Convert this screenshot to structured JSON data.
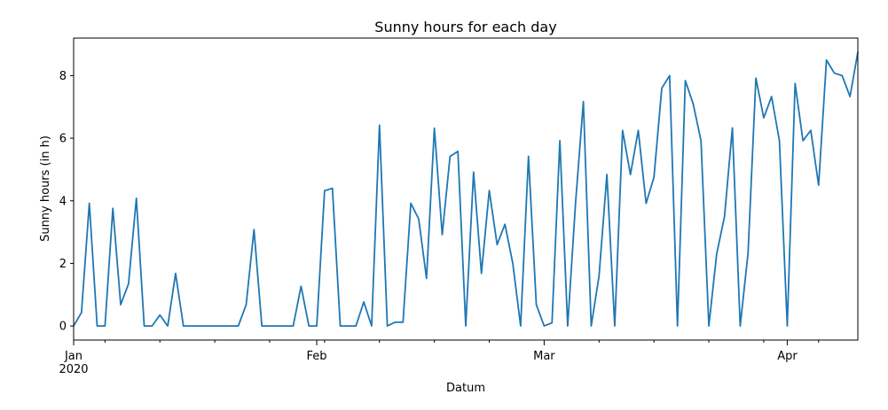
{
  "chart_data": {
    "type": "line",
    "title": "Sunny hours for each day",
    "xlabel": "Datum",
    "ylabel": "Sunny hours (in h)",
    "year_label": "2020",
    "x_start": "2020-01-01",
    "x_end": "2020-04-10",
    "ylim": [
      -0.45,
      9.2
    ],
    "yticks": [
      0,
      2,
      4,
      6,
      8
    ],
    "xticks": [
      {
        "date": "2020-01-01",
        "label": "Jan"
      },
      {
        "date": "2020-02-01",
        "label": "Feb"
      },
      {
        "date": "2020-03-01",
        "label": "Mar"
      },
      {
        "date": "2020-04-01",
        "label": "Apr"
      }
    ],
    "minor_tick_dates": [
      "2020-01-05",
      "2020-01-12",
      "2020-01-19",
      "2020-01-26",
      "2020-02-02",
      "2020-02-09",
      "2020-02-16",
      "2020-02-23",
      "2020-03-08",
      "2020-03-15",
      "2020-03-22",
      "2020-03-29",
      "2020-04-05"
    ],
    "grid": false,
    "line_color": "#1f77b4",
    "series": [
      {
        "x": [
          "2020-01-01",
          "2020-01-02",
          "2020-01-03",
          "2020-01-04",
          "2020-01-05",
          "2020-01-06",
          "2020-01-07",
          "2020-01-08",
          "2020-01-09",
          "2020-01-10",
          "2020-01-11",
          "2020-01-12",
          "2020-01-13",
          "2020-01-14",
          "2020-01-15",
          "2020-01-16",
          "2020-01-17",
          "2020-01-18",
          "2020-01-19",
          "2020-01-20",
          "2020-01-21",
          "2020-01-22",
          "2020-01-23",
          "2020-01-24",
          "2020-01-25",
          "2020-01-26",
          "2020-01-27",
          "2020-01-28",
          "2020-01-29",
          "2020-01-30",
          "2020-01-31",
          "2020-02-01",
          "2020-02-02",
          "2020-02-03",
          "2020-02-04",
          "2020-02-05",
          "2020-02-06",
          "2020-02-07",
          "2020-02-08",
          "2020-02-09",
          "2020-02-10",
          "2020-02-11",
          "2020-02-12",
          "2020-02-13",
          "2020-02-14",
          "2020-02-15",
          "2020-02-16",
          "2020-02-17",
          "2020-02-18",
          "2020-02-19",
          "2020-02-20",
          "2020-02-21",
          "2020-02-22",
          "2020-02-23",
          "2020-02-24",
          "2020-02-25",
          "2020-02-26",
          "2020-02-27",
          "2020-02-28",
          "2020-02-29",
          "2020-03-01",
          "2020-03-02",
          "2020-03-03",
          "2020-03-04",
          "2020-03-05",
          "2020-03-06",
          "2020-03-07",
          "2020-03-08",
          "2020-03-09",
          "2020-03-10",
          "2020-03-11",
          "2020-03-12",
          "2020-03-13",
          "2020-03-14",
          "2020-03-15",
          "2020-03-16",
          "2020-03-17",
          "2020-03-18",
          "2020-03-19",
          "2020-03-20",
          "2020-03-21",
          "2020-03-22",
          "2020-03-23",
          "2020-03-24",
          "2020-03-25",
          "2020-03-26",
          "2020-03-27",
          "2020-03-28",
          "2020-03-29",
          "2020-03-30",
          "2020-03-31",
          "2020-04-01",
          "2020-04-02",
          "2020-04-03",
          "2020-04-04",
          "2020-04-05",
          "2020-04-06",
          "2020-04-07",
          "2020-04-08",
          "2020-04-09",
          "2020-04-10"
        ],
        "values": [
          0,
          0.43,
          3.92,
          0,
          0,
          3.76,
          0.68,
          1.35,
          4.08,
          0,
          0,
          0.35,
          0,
          1.68,
          0,
          0,
          0,
          0,
          0,
          0,
          0,
          0,
          0.68,
          3.08,
          0,
          0,
          0,
          0,
          0,
          1.27,
          0,
          0,
          4.32,
          4.4,
          0,
          0,
          0,
          0.77,
          0,
          6.42,
          0,
          0.12,
          0.12,
          3.92,
          3.42,
          1.52,
          6.32,
          2.92,
          5.42,
          5.58,
          0,
          4.92,
          1.68,
          4.33,
          2.6,
          3.25,
          2.0,
          0,
          5.42,
          0.68,
          0,
          0.1,
          5.92,
          0,
          3.92,
          7.17,
          0,
          1.6,
          4.84,
          0,
          6.25,
          4.84,
          6.25,
          3.92,
          4.75,
          7.6,
          8.0,
          0,
          7.84,
          7.1,
          5.92,
          0,
          2.3,
          3.5,
          6.33,
          0,
          2.33,
          7.92,
          6.65,
          7.33,
          5.92,
          0,
          7.75,
          5.92,
          6.25,
          4.5,
          8.5,
          8.08,
          8.0,
          7.33,
          8.75
        ]
      }
    ]
  }
}
